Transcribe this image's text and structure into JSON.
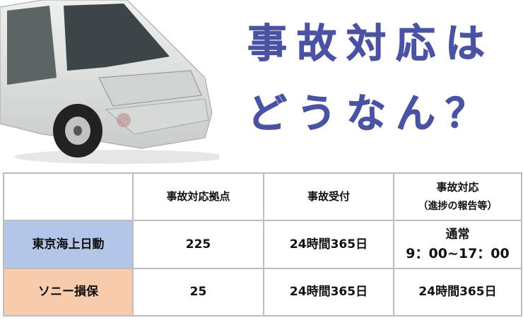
{
  "title": {
    "line1": "事故対応は",
    "line2": "どうなん？",
    "color": "#4a52a3"
  },
  "image": {
    "icon": "damaged-white-minivan-photo"
  },
  "table": {
    "headers": [
      "",
      "事故対応拠点",
      "事故受付",
      "事故対応",
      "（進捗の報告等）"
    ],
    "rows": [
      {
        "company": "東京海上日動",
        "color": "#b4c6e7",
        "bases": "225",
        "reception": "24時間365日",
        "response_line1": "通常",
        "response_line2": "9：00~17：00"
      },
      {
        "company": "ソニー損保",
        "color": "#f8cbad",
        "bases": "25",
        "reception": "24時間365日",
        "response_line1": "24時間365日",
        "response_line2": ""
      }
    ]
  }
}
